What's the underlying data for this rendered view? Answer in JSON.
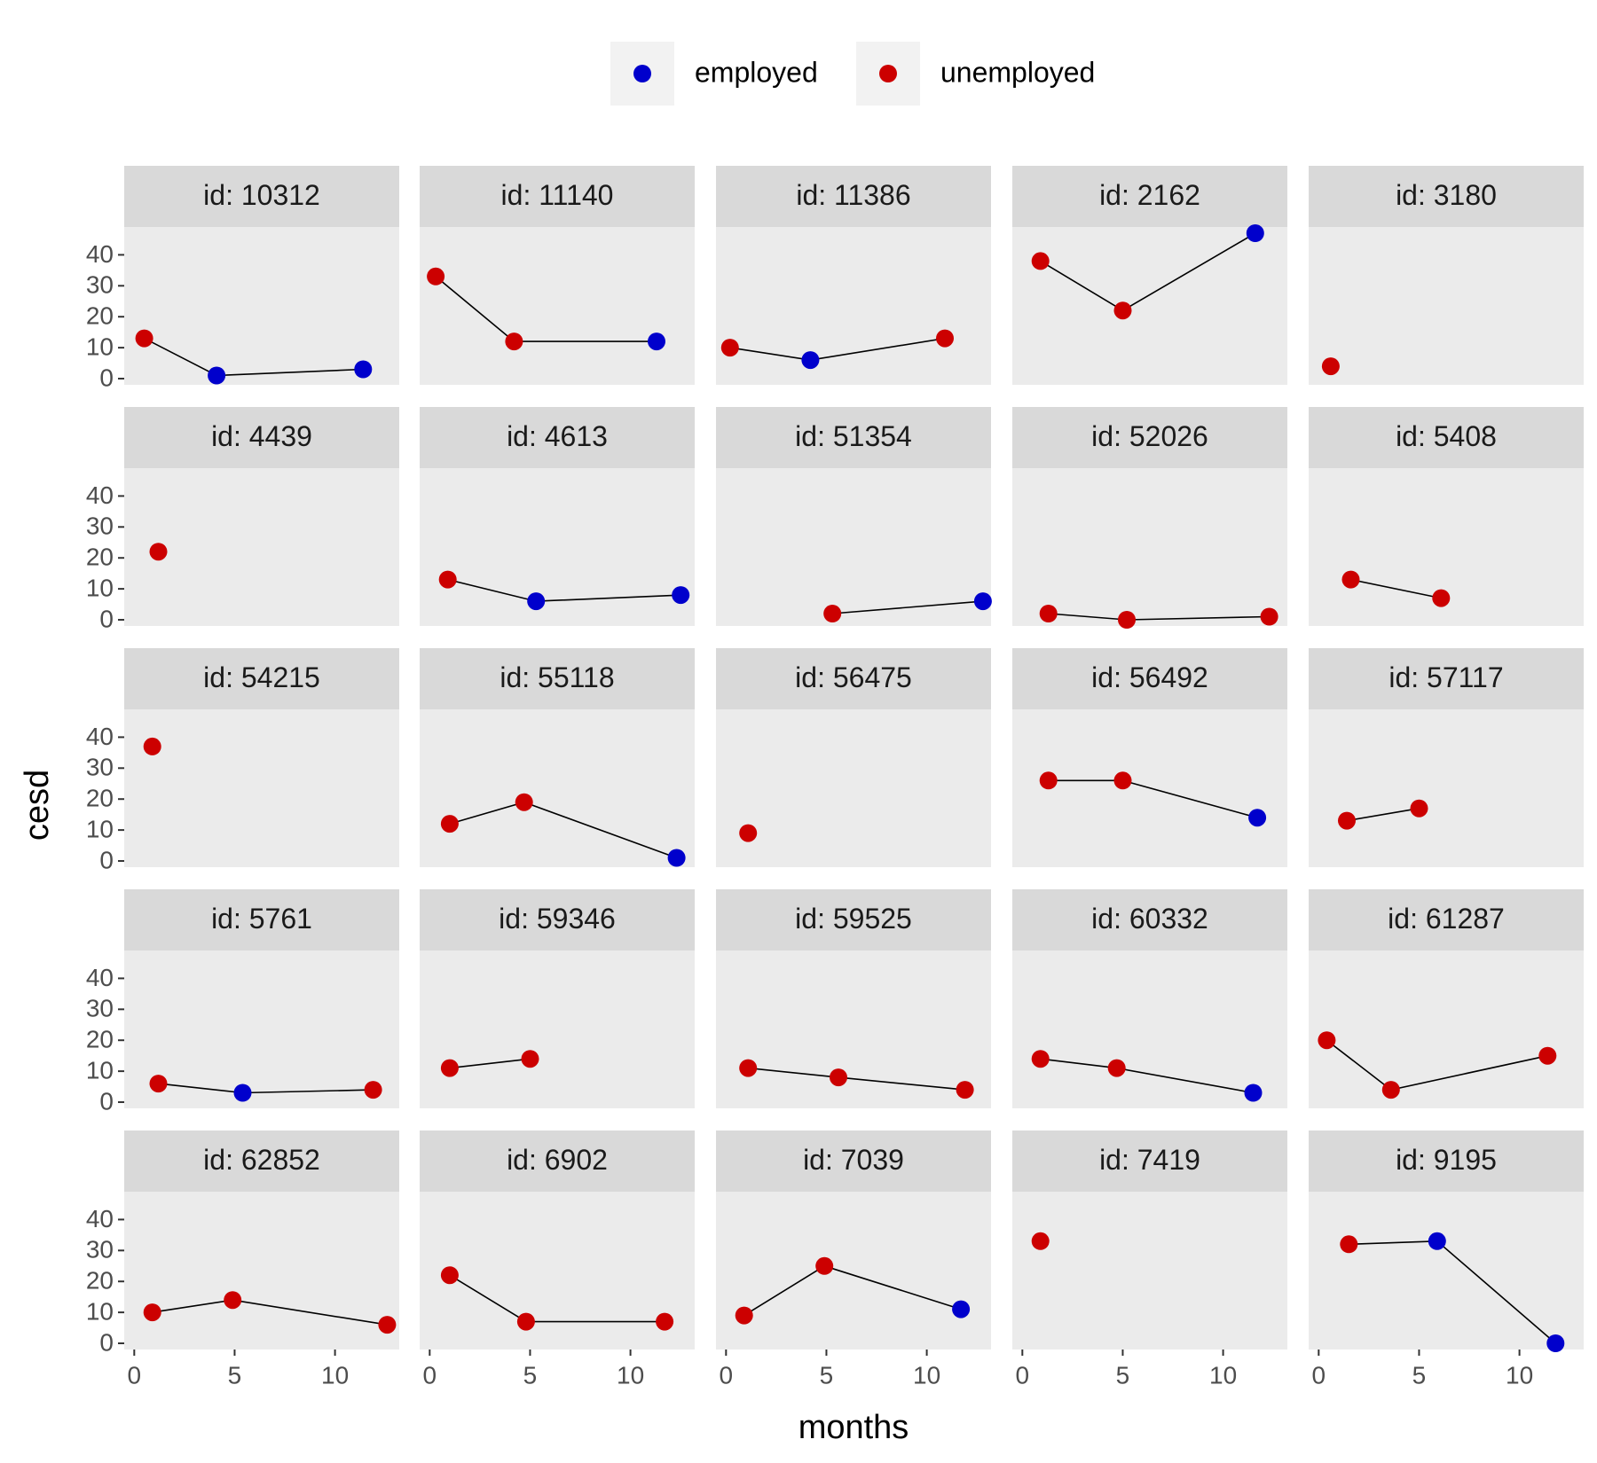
{
  "chart_data": {
    "type": "scatter",
    "facet_by": "id",
    "facet_label_prefix": "id: ",
    "xlabel": "months",
    "ylabel": "cesd",
    "xlim": [
      -0.5,
      13.2
    ],
    "ylim": [
      -2,
      49
    ],
    "xticks": [
      0,
      5,
      10
    ],
    "yticks": [
      0,
      10,
      20,
      30,
      40
    ],
    "legend": {
      "position": "top",
      "entries": [
        {
          "key": "employed",
          "label": "employed",
          "color": "#0000cc"
        },
        {
          "key": "unemployed",
          "label": "unemployed",
          "color": "#cc0000"
        }
      ]
    },
    "colors": {
      "panel_bg": "#ebebeb",
      "strip_bg": "#d9d9d9",
      "line": "#000000"
    },
    "panels": [
      {
        "id": "10312",
        "points": [
          {
            "x": 0.5,
            "y": 13,
            "status": "unemployed"
          },
          {
            "x": 4.1,
            "y": 1,
            "status": "employed"
          },
          {
            "x": 11.4,
            "y": 3,
            "status": "employed"
          }
        ]
      },
      {
        "id": "11140",
        "points": [
          {
            "x": 0.3,
            "y": 33,
            "status": "unemployed"
          },
          {
            "x": 4.2,
            "y": 12,
            "status": "unemployed"
          },
          {
            "x": 11.3,
            "y": 12,
            "status": "employed"
          }
        ]
      },
      {
        "id": "11386",
        "points": [
          {
            "x": 0.2,
            "y": 10,
            "status": "unemployed"
          },
          {
            "x": 4.2,
            "y": 6,
            "status": "employed"
          },
          {
            "x": 10.9,
            "y": 13,
            "status": "unemployed"
          }
        ]
      },
      {
        "id": "2162",
        "points": [
          {
            "x": 0.9,
            "y": 38,
            "status": "unemployed"
          },
          {
            "x": 5.0,
            "y": 22,
            "status": "unemployed"
          },
          {
            "x": 11.6,
            "y": 47,
            "status": "employed"
          }
        ]
      },
      {
        "id": "3180",
        "points": [
          {
            "x": 0.6,
            "y": 4,
            "status": "unemployed"
          }
        ]
      },
      {
        "id": "4439",
        "points": [
          {
            "x": 1.2,
            "y": 22,
            "status": "unemployed"
          }
        ]
      },
      {
        "id": "4613",
        "points": [
          {
            "x": 0.9,
            "y": 13,
            "status": "unemployed"
          },
          {
            "x": 5.3,
            "y": 6,
            "status": "employed"
          },
          {
            "x": 12.5,
            "y": 8,
            "status": "employed"
          }
        ]
      },
      {
        "id": "51354",
        "points": [
          {
            "x": 5.3,
            "y": 2,
            "status": "unemployed"
          },
          {
            "x": 12.8,
            "y": 6,
            "status": "employed"
          }
        ]
      },
      {
        "id": "52026",
        "points": [
          {
            "x": 1.3,
            "y": 2,
            "status": "unemployed"
          },
          {
            "x": 5.2,
            "y": 0,
            "status": "unemployed"
          },
          {
            "x": 12.3,
            "y": 1,
            "status": "unemployed"
          }
        ]
      },
      {
        "id": "5408",
        "points": [
          {
            "x": 1.6,
            "y": 13,
            "status": "unemployed"
          },
          {
            "x": 6.1,
            "y": 7,
            "status": "unemployed"
          }
        ]
      },
      {
        "id": "54215",
        "points": [
          {
            "x": 0.9,
            "y": 37,
            "status": "unemployed"
          }
        ]
      },
      {
        "id": "55118",
        "points": [
          {
            "x": 1.0,
            "y": 12,
            "status": "unemployed"
          },
          {
            "x": 4.7,
            "y": 19,
            "status": "unemployed"
          },
          {
            "x": 12.3,
            "y": 1,
            "status": "employed"
          }
        ]
      },
      {
        "id": "56475",
        "points": [
          {
            "x": 1.1,
            "y": 9,
            "status": "unemployed"
          }
        ]
      },
      {
        "id": "56492",
        "points": [
          {
            "x": 1.3,
            "y": 26,
            "status": "unemployed"
          },
          {
            "x": 5.0,
            "y": 26,
            "status": "unemployed"
          },
          {
            "x": 11.7,
            "y": 14,
            "status": "employed"
          }
        ]
      },
      {
        "id": "57117",
        "points": [
          {
            "x": 1.4,
            "y": 13,
            "status": "unemployed"
          },
          {
            "x": 5.0,
            "y": 17,
            "status": "unemployed"
          }
        ]
      },
      {
        "id": "5761",
        "points": [
          {
            "x": 1.2,
            "y": 6,
            "status": "unemployed"
          },
          {
            "x": 5.4,
            "y": 3,
            "status": "employed"
          },
          {
            "x": 11.9,
            "y": 4,
            "status": "unemployed"
          }
        ]
      },
      {
        "id": "59346",
        "points": [
          {
            "x": 1.0,
            "y": 11,
            "status": "unemployed"
          },
          {
            "x": 5.0,
            "y": 14,
            "status": "unemployed"
          }
        ]
      },
      {
        "id": "59525",
        "points": [
          {
            "x": 1.1,
            "y": 11,
            "status": "unemployed"
          },
          {
            "x": 5.6,
            "y": 8,
            "status": "unemployed"
          },
          {
            "x": 11.9,
            "y": 4,
            "status": "unemployed"
          }
        ]
      },
      {
        "id": "60332",
        "points": [
          {
            "x": 0.9,
            "y": 14,
            "status": "unemployed"
          },
          {
            "x": 4.7,
            "y": 11,
            "status": "unemployed"
          },
          {
            "x": 11.5,
            "y": 3,
            "status": "employed"
          }
        ]
      },
      {
        "id": "61287",
        "points": [
          {
            "x": 0.4,
            "y": 20,
            "status": "unemployed"
          },
          {
            "x": 3.6,
            "y": 4,
            "status": "unemployed"
          },
          {
            "x": 11.4,
            "y": 15,
            "status": "unemployed"
          }
        ]
      },
      {
        "id": "62852",
        "points": [
          {
            "x": 0.9,
            "y": 10,
            "status": "unemployed"
          },
          {
            "x": 4.9,
            "y": 14,
            "status": "unemployed"
          },
          {
            "x": 12.6,
            "y": 6,
            "status": "unemployed"
          }
        ]
      },
      {
        "id": "6902",
        "points": [
          {
            "x": 1.0,
            "y": 22,
            "status": "unemployed"
          },
          {
            "x": 4.8,
            "y": 7,
            "status": "unemployed"
          },
          {
            "x": 11.7,
            "y": 7,
            "status": "unemployed"
          }
        ]
      },
      {
        "id": "7039",
        "points": [
          {
            "x": 0.9,
            "y": 9,
            "status": "unemployed"
          },
          {
            "x": 4.9,
            "y": 25,
            "status": "unemployed"
          },
          {
            "x": 11.7,
            "y": 11,
            "status": "employed"
          }
        ]
      },
      {
        "id": "7419",
        "points": [
          {
            "x": 0.9,
            "y": 33,
            "status": "unemployed"
          }
        ]
      },
      {
        "id": "9195",
        "points": [
          {
            "x": 1.5,
            "y": 32,
            "status": "unemployed"
          },
          {
            "x": 5.9,
            "y": 33,
            "status": "employed"
          },
          {
            "x": 11.8,
            "y": 0,
            "status": "employed"
          }
        ]
      }
    ]
  }
}
